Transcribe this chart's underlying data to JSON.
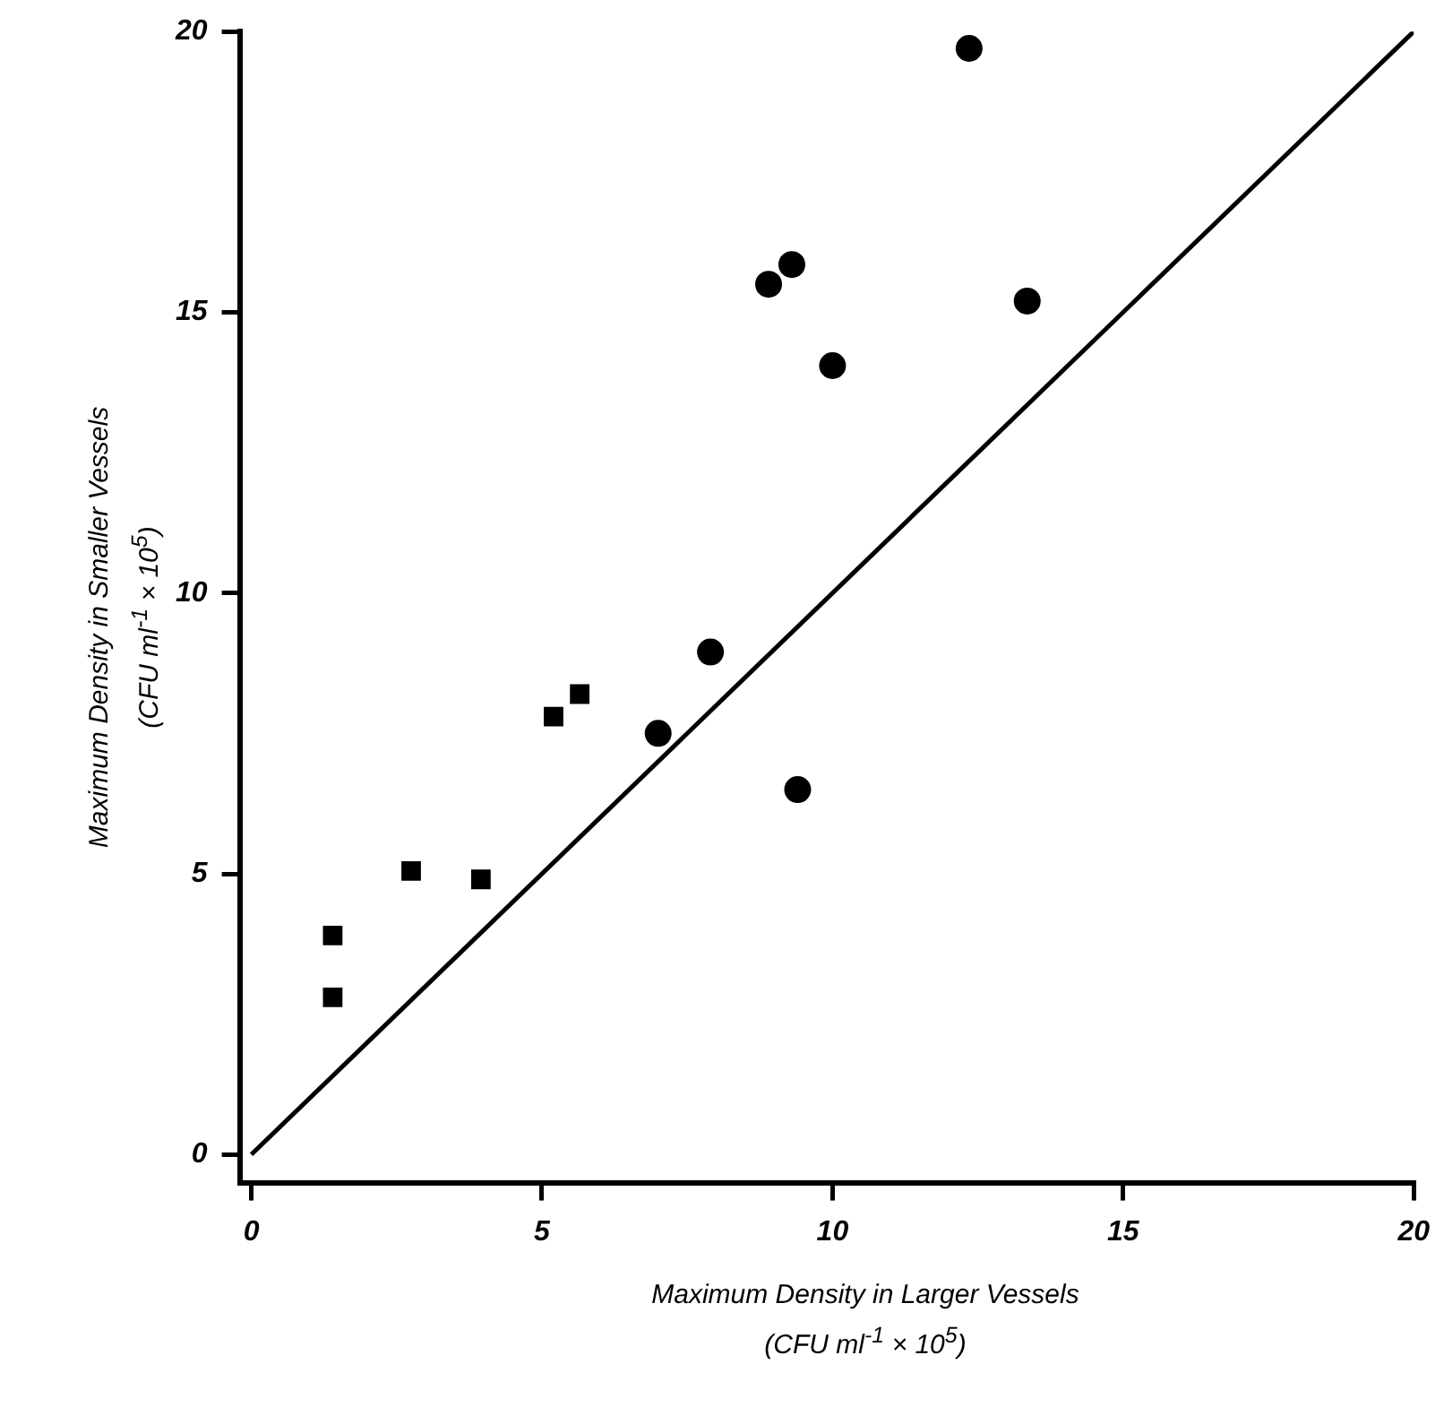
{
  "chart_data": {
    "type": "scatter",
    "xlabel": "Maximum Density in Larger Vessels\n(CFU ml$^{-1}$ × 10$^{5}$)",
    "ylabel": "Maximum Density in Smaller Vessels\n(CFU ml$^{-1}$ × 10$^{5}$)",
    "xlim": [
      -0.2,
      20
    ],
    "ylim": [
      -0.5,
      20
    ],
    "xticks": [
      0,
      5,
      10,
      15,
      20
    ],
    "yticks": [
      0,
      5,
      10,
      15,
      20
    ],
    "grid": false,
    "legend": false,
    "series": [
      {
        "type": "scatter",
        "marker": "square",
        "color": "#000000",
        "x": [
          1.4,
          1.4,
          2.75,
          3.95,
          5.2,
          5.65
        ],
        "values": [
          3.9,
          2.8,
          5.05,
          4.9,
          7.8,
          8.2
        ]
      },
      {
        "type": "scatter",
        "marker": "circle",
        "color": "#000000",
        "x": [
          7.0,
          7.9,
          8.9,
          9.3,
          10.0,
          9.4,
          12.35,
          13.35
        ],
        "values": [
          7.5,
          8.95,
          15.5,
          15.85,
          14.05,
          6.5,
          19.7,
          15.2
        ]
      },
      {
        "type": "line",
        "marker": "none",
        "line_style": "solid",
        "color": "#000000",
        "x": [
          0,
          20
        ],
        "values": [
          0,
          20
        ]
      }
    ]
  }
}
